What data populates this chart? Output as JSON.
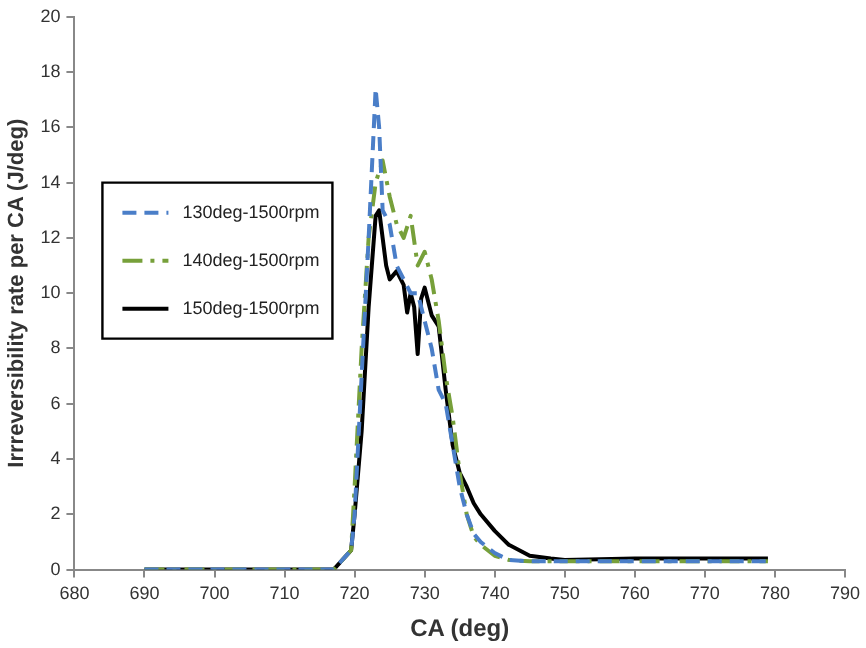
{
  "chart_data": {
    "type": "line",
    "xlabel": "CA (deg)",
    "ylabel": "Irrreversibility rate per CA (J/deg)",
    "xlim": [
      680,
      790
    ],
    "xticks": [
      680,
      690,
      700,
      710,
      720,
      730,
      740,
      750,
      760,
      770,
      780,
      790
    ],
    "ylim": [
      0,
      20
    ],
    "yticks": [
      0,
      2,
      4,
      6,
      8,
      10,
      12,
      14,
      16,
      18,
      20
    ],
    "grid": false,
    "legend": "left",
    "marker": "none",
    "series": [
      {
        "name": "130deg-1500rpm",
        "color": "#4a7ec8",
        "line_style": "dashed",
        "x": [
          690,
          717,
          719.5,
          720,
          721,
          722,
          723,
          723.5,
          724,
          725,
          726,
          727,
          728,
          729,
          730,
          731,
          732,
          733,
          734,
          735,
          736,
          737,
          738,
          740,
          742,
          745,
          750,
          760,
          770,
          779
        ],
        "values": [
          0,
          0,
          0.7,
          2,
          7,
          12,
          17.4,
          16,
          13,
          12.5,
          11,
          10.5,
          10,
          10,
          9,
          8,
          6.5,
          6,
          4.5,
          3,
          2,
          1.3,
          1,
          0.6,
          0.35,
          0.3,
          0.3,
          0.3,
          0.3,
          0.3
        ]
      },
      {
        "name": "140deg-1500rpm",
        "color": "#77a03a",
        "line_style": "dashdot",
        "x": [
          690,
          717,
          719.5,
          720,
          721,
          722,
          723,
          724,
          725,
          726,
          727,
          728,
          729,
          730,
          731,
          732,
          733,
          734,
          735,
          736,
          737,
          738,
          740,
          742,
          745,
          750,
          779
        ],
        "values": [
          0,
          0,
          0.7,
          3,
          8,
          12,
          14,
          14.8,
          13.5,
          12.5,
          12,
          12.8,
          11,
          11.5,
          10.5,
          9,
          7,
          5.5,
          3.5,
          2,
          1.2,
          0.9,
          0.5,
          0.35,
          0.3,
          0.3,
          0.3
        ]
      },
      {
        "name": "150deg-1500rpm",
        "color": "#000000",
        "line_style": "solid",
        "x": [
          690,
          717,
          719.5,
          720,
          721,
          722,
          723,
          723.5,
          724,
          724.5,
          725,
          726,
          727,
          727.5,
          728,
          728.5,
          729,
          729.5,
          730,
          731,
          732,
          733,
          734,
          735,
          736,
          737,
          738,
          740,
          742,
          745,
          748,
          750,
          760,
          779
        ],
        "values": [
          0,
          0,
          0.7,
          2,
          5,
          9.5,
          12.8,
          13,
          12,
          11,
          10.5,
          10.8,
          10.3,
          9.3,
          10,
          9.5,
          7.8,
          9.8,
          10.2,
          9.2,
          8.8,
          6.5,
          4.5,
          3.5,
          3,
          2.4,
          2,
          1.4,
          0.9,
          0.5,
          0.4,
          0.35,
          0.4,
          0.4
        ]
      }
    ]
  }
}
